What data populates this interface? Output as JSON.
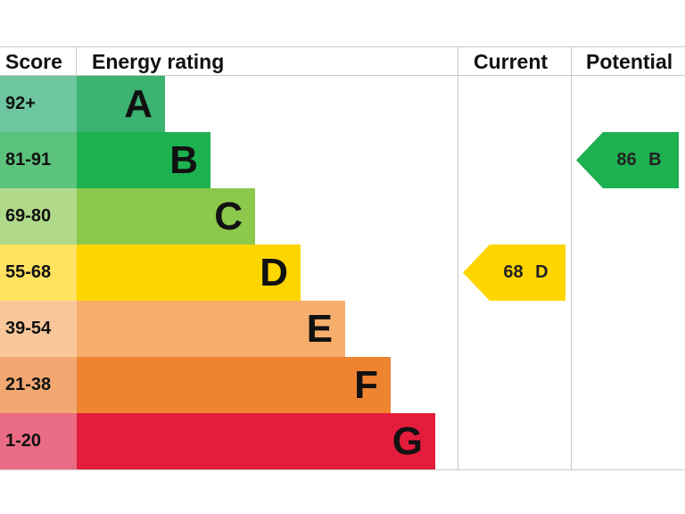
{
  "chart_data": {
    "type": "bar",
    "headers": {
      "score": "Score",
      "rating": "Energy rating",
      "current": "Current",
      "potential": "Potential"
    },
    "bands": [
      {
        "score": "92+",
        "letter": "A",
        "color": "#3cb371",
        "light": "#6dc6a0"
      },
      {
        "score": "81-91",
        "letter": "B",
        "color": "#1db150",
        "light": "#5cc37c"
      },
      {
        "score": "69-80",
        "letter": "C",
        "color": "#8cc84b",
        "light": "#b0d98a"
      },
      {
        "score": "55-68",
        "letter": "D",
        "color": "#ffd500",
        "light": "#ffe25f"
      },
      {
        "score": "39-54",
        "letter": "E",
        "color": "#f7ad6b",
        "light": "#fac79b"
      },
      {
        "score": "21-38",
        "letter": "F",
        "color": "#ee8330",
        "light": "#f3a872"
      },
      {
        "score": "1-20",
        "letter": "G",
        "color": "#e31d3b",
        "light": "#ea6c84"
      }
    ],
    "current": {
      "value": 68,
      "letter": "D",
      "label": "68  D",
      "color": "#ffd500"
    },
    "potential": {
      "value": 86,
      "letter": "B",
      "label": "86  B",
      "color": "#1db150"
    }
  }
}
